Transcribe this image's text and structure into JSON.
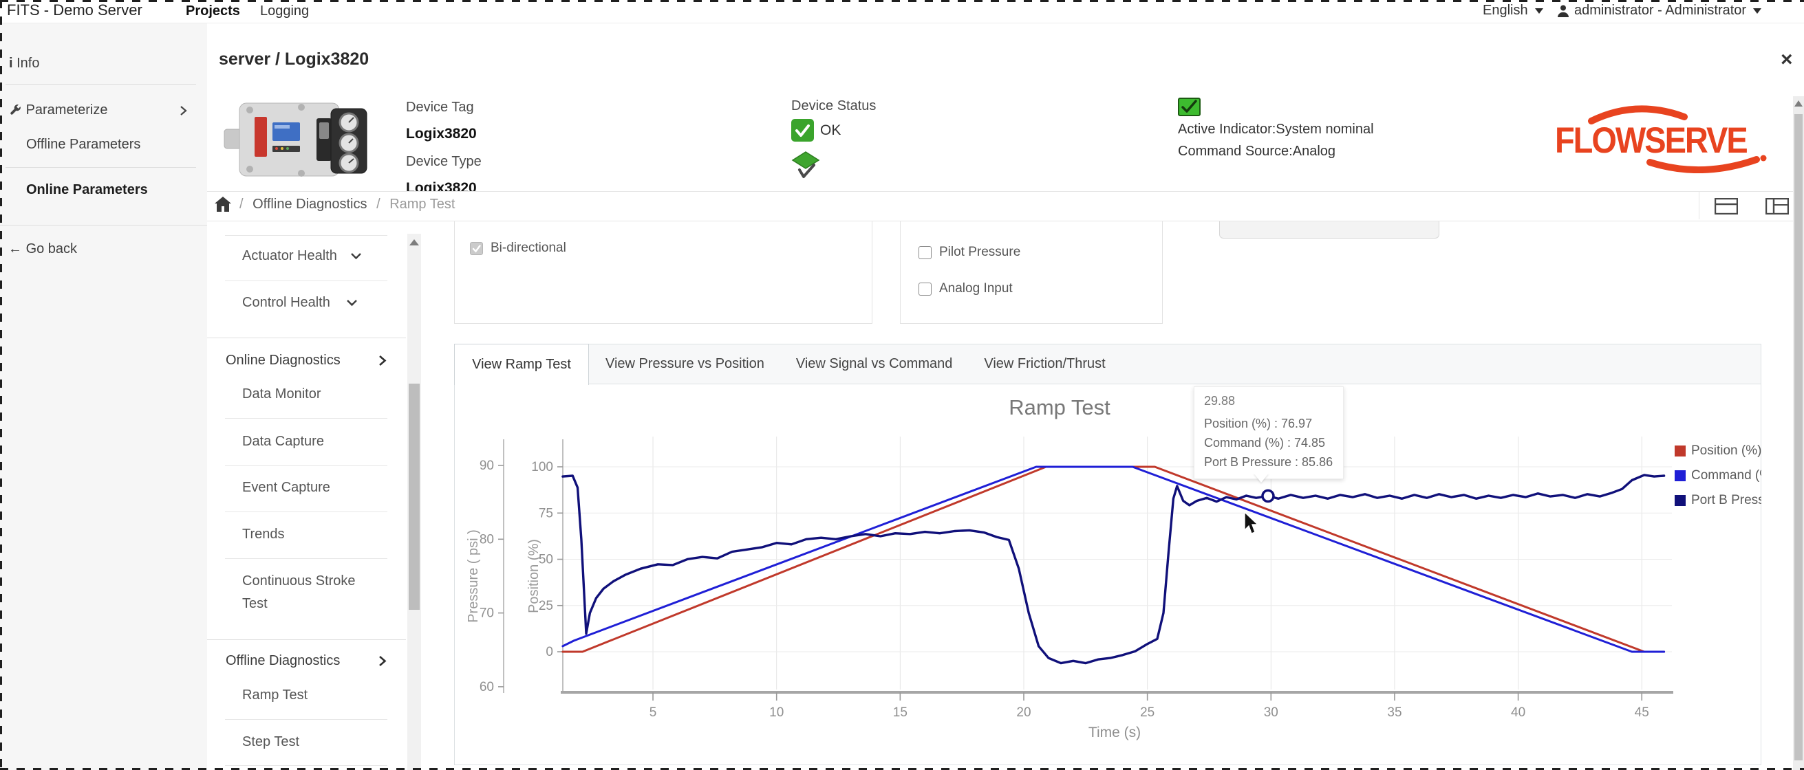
{
  "navbar": {
    "brand": "FITS - Demo Server",
    "projects": "Projects",
    "logging": "Logging",
    "language": "English",
    "user": "administrator - Administrator"
  },
  "header": {
    "title": "server / Logix3820",
    "close": "×"
  },
  "device": {
    "tag_label": "Device Tag",
    "tag": "Logix3820",
    "type_label": "Device Type",
    "type": "Logix3820",
    "status_label": "Device Status",
    "status_ok": "OK",
    "active_indicator": "Active Indicator:System nominal",
    "command_source": "Command Source:Analog"
  },
  "logo": {
    "text": "FLOWSERVE",
    "color": "#e8431f"
  },
  "breadcrumb": {
    "items": [
      "Offline Diagnostics",
      "Ramp Test"
    ]
  },
  "sidebar": {
    "items": [
      {
        "label": "Info"
      },
      {
        "label": "Parameterize"
      },
      {
        "label": "Offline Parameters"
      },
      {
        "label": "Online Parameters"
      },
      {
        "label": "Go back"
      }
    ]
  },
  "menu": {
    "items": [
      {
        "label": "Actuator Health"
      },
      {
        "label": "Control Health"
      },
      {
        "label": "Online Diagnostics"
      },
      {
        "label": "Data Monitor"
      },
      {
        "label": "Data Capture"
      },
      {
        "label": "Event Capture"
      },
      {
        "label": "Trends"
      },
      {
        "label": "Continuous Stroke Test"
      },
      {
        "label": "Offline Diagnostics"
      },
      {
        "label": "Ramp Test"
      },
      {
        "label": "Step Test"
      }
    ]
  },
  "options": {
    "bidirectional": "Bi-directional",
    "pilot_pressure": "Pilot Pressure",
    "analog_input": "Analog Input"
  },
  "tabs": {
    "items": [
      "View Ramp Test",
      "View Pressure vs Position",
      "View Signal vs Command",
      "View Friction/Thrust"
    ],
    "active": 0
  },
  "tooltip": {
    "title": "29.88",
    "rows": [
      "Position (%) : 76.97",
      "Command (%) : 74.85",
      "Port B Pressure : 85.86"
    ]
  },
  "chart_data": {
    "type": "line",
    "title": "Ramp Test",
    "xlabel": "Time (s)",
    "ylabel_pressure": "Pressure ( psi )",
    "ylabel_position": "Position (%)",
    "x_ticks": [
      5,
      10,
      15,
      20,
      25,
      30,
      35,
      40,
      45
    ],
    "xlim": [
      1.3,
      46.3
    ],
    "position_axis": {
      "range": [
        0,
        100
      ],
      "ticks": [
        0,
        25,
        50,
        75,
        100
      ]
    },
    "pressure_axis": {
      "range": [
        60,
        90
      ],
      "ticks": [
        60,
        70,
        80,
        90
      ]
    },
    "grid": true,
    "legend_position": "right",
    "marker": {
      "series": "Port B Pressure",
      "t": 29.88,
      "value": 85.86
    },
    "series": [
      {
        "name": "Position (%)",
        "color": "#c0392b",
        "axis": "position",
        "points": [
          [
            1.35,
            0
          ],
          [
            2.15,
            0
          ],
          [
            20.9,
            100
          ],
          [
            25.3,
            100
          ],
          [
            45.1,
            0
          ],
          [
            45.9,
            0
          ]
        ]
      },
      {
        "name": "Command (%)",
        "color": "#1f1fd6",
        "axis": "position",
        "points": [
          [
            1.35,
            3
          ],
          [
            1.8,
            6
          ],
          [
            2.3,
            8.5
          ],
          [
            20.5,
            100
          ],
          [
            24.4,
            100
          ],
          [
            44.6,
            0
          ],
          [
            45.9,
            0
          ]
        ]
      },
      {
        "name": "Port B Pressure",
        "color": "#10107a",
        "axis": "pressure",
        "points": [
          [
            1.35,
            88.5
          ],
          [
            1.75,
            88.6
          ],
          [
            1.95,
            87
          ],
          [
            2.1,
            80
          ],
          [
            2.3,
            67.2
          ],
          [
            2.45,
            70
          ],
          [
            2.7,
            72
          ],
          [
            3.0,
            73.3
          ],
          [
            3.4,
            74.3
          ],
          [
            3.9,
            75.2
          ],
          [
            4.5,
            76.0
          ],
          [
            5.2,
            76.6
          ],
          [
            5.8,
            76.5
          ],
          [
            6.4,
            77.3
          ],
          [
            7.0,
            77.6
          ],
          [
            7.6,
            77.4
          ],
          [
            8.2,
            78.3
          ],
          [
            8.8,
            78.6
          ],
          [
            9.4,
            78.9
          ],
          [
            10.0,
            79.5
          ],
          [
            10.6,
            79.3
          ],
          [
            11.2,
            80.0
          ],
          [
            11.8,
            80.2
          ],
          [
            12.4,
            80.0
          ],
          [
            13.0,
            80.4
          ],
          [
            13.6,
            80.7
          ],
          [
            14.2,
            80.4
          ],
          [
            14.8,
            80.8
          ],
          [
            15.4,
            80.7
          ],
          [
            16.0,
            81.0
          ],
          [
            16.6,
            80.8
          ],
          [
            17.2,
            81.1
          ],
          [
            17.8,
            81.2
          ],
          [
            18.4,
            80.9
          ],
          [
            18.9,
            80.3
          ],
          [
            19.4,
            79.9
          ],
          [
            19.8,
            76
          ],
          [
            20.2,
            70
          ],
          [
            20.6,
            65.5
          ],
          [
            21.0,
            63.9
          ],
          [
            21.5,
            63.2
          ],
          [
            22.0,
            63.5
          ],
          [
            22.5,
            63.2
          ],
          [
            23.0,
            63.7
          ],
          [
            23.5,
            63.9
          ],
          [
            24.0,
            64.3
          ],
          [
            24.5,
            64.8
          ],
          [
            25.0,
            65.8
          ],
          [
            25.4,
            66.5
          ],
          [
            25.65,
            70
          ],
          [
            25.85,
            78
          ],
          [
            26.05,
            85.5
          ],
          [
            26.2,
            87.2
          ],
          [
            26.45,
            85.2
          ],
          [
            26.7,
            84.6
          ],
          [
            27.0,
            85.2
          ],
          [
            27.4,
            85.6
          ],
          [
            27.8,
            85.1
          ],
          [
            28.2,
            85.7
          ],
          [
            28.6,
            85.4
          ],
          [
            29.0,
            85.9
          ],
          [
            29.4,
            85.6
          ],
          [
            29.88,
            85.86
          ],
          [
            30.3,
            85.5
          ],
          [
            30.8,
            86.0
          ],
          [
            31.3,
            85.6
          ],
          [
            31.8,
            85.9
          ],
          [
            32.3,
            85.5
          ],
          [
            32.8,
            86.0
          ],
          [
            33.3,
            85.7
          ],
          [
            33.8,
            86.1
          ],
          [
            34.3,
            85.6
          ],
          [
            34.8,
            85.9
          ],
          [
            35.3,
            85.5
          ],
          [
            35.8,
            86.0
          ],
          [
            36.3,
            85.6
          ],
          [
            36.8,
            86.1
          ],
          [
            37.3,
            85.7
          ],
          [
            37.8,
            86.0
          ],
          [
            38.3,
            85.5
          ],
          [
            38.8,
            85.9
          ],
          [
            39.3,
            85.6
          ],
          [
            39.8,
            86.0
          ],
          [
            40.3,
            85.7
          ],
          [
            40.8,
            86.2
          ],
          [
            41.3,
            85.8
          ],
          [
            41.8,
            86.0
          ],
          [
            42.3,
            85.6
          ],
          [
            42.8,
            86.1
          ],
          [
            43.3,
            85.8
          ],
          [
            43.8,
            86.3
          ],
          [
            44.2,
            86.8
          ],
          [
            44.6,
            88.0
          ],
          [
            45.1,
            88.7
          ],
          [
            45.5,
            88.5
          ],
          [
            45.9,
            88.6
          ]
        ]
      }
    ]
  }
}
